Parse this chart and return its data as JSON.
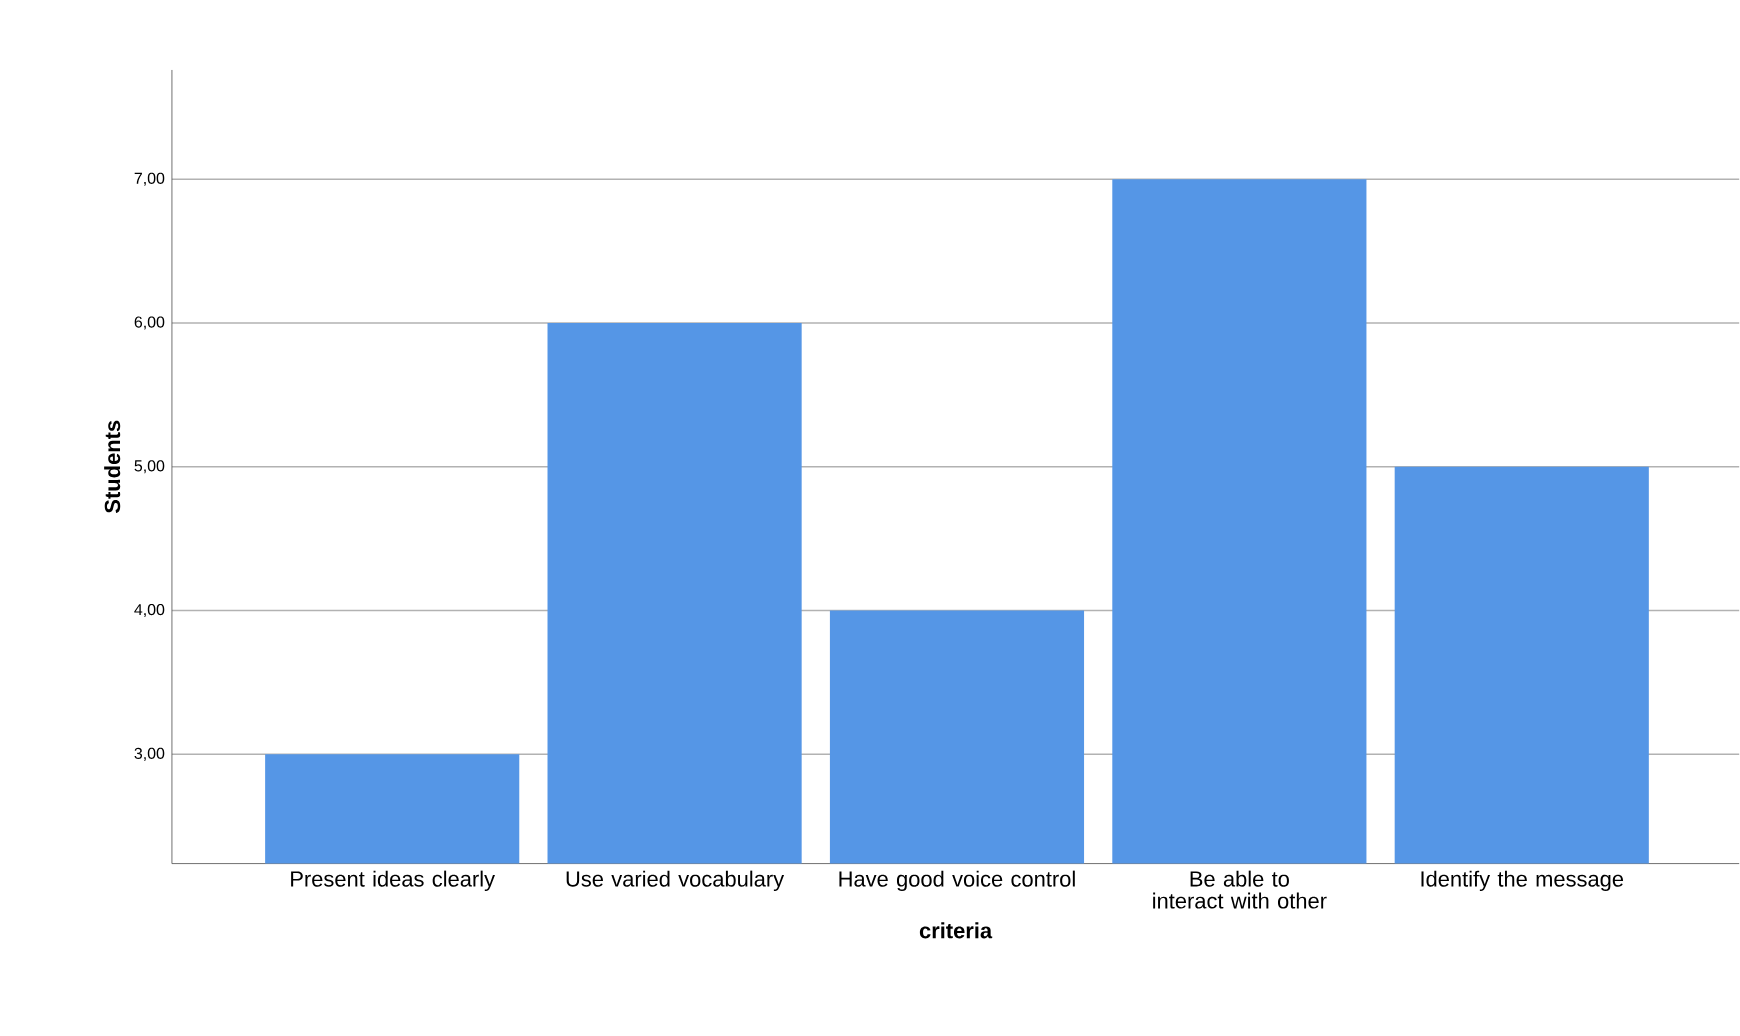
{
  "chart_data": {
    "type": "bar",
    "xlabel": "criteria",
    "ylabel": "Students",
    "categories": [
      "Present ideas clearly",
      "Use varied vocabulary",
      "Have good voice control",
      "Be able to interact with other",
      "Identify the message"
    ],
    "values": [
      3,
      6,
      4,
      7,
      5
    ],
    "color": "#5596e6",
    "ylim": [
      2.24,
      7.76
    ],
    "yticks": [
      {
        "value": 3,
        "label": "3,00"
      },
      {
        "value": 4,
        "label": "4,00"
      },
      {
        "value": 5,
        "label": "5,00"
      },
      {
        "value": 6,
        "label": "6,00"
      },
      {
        "value": 7,
        "label": "7,00"
      }
    ],
    "grid": "y"
  }
}
